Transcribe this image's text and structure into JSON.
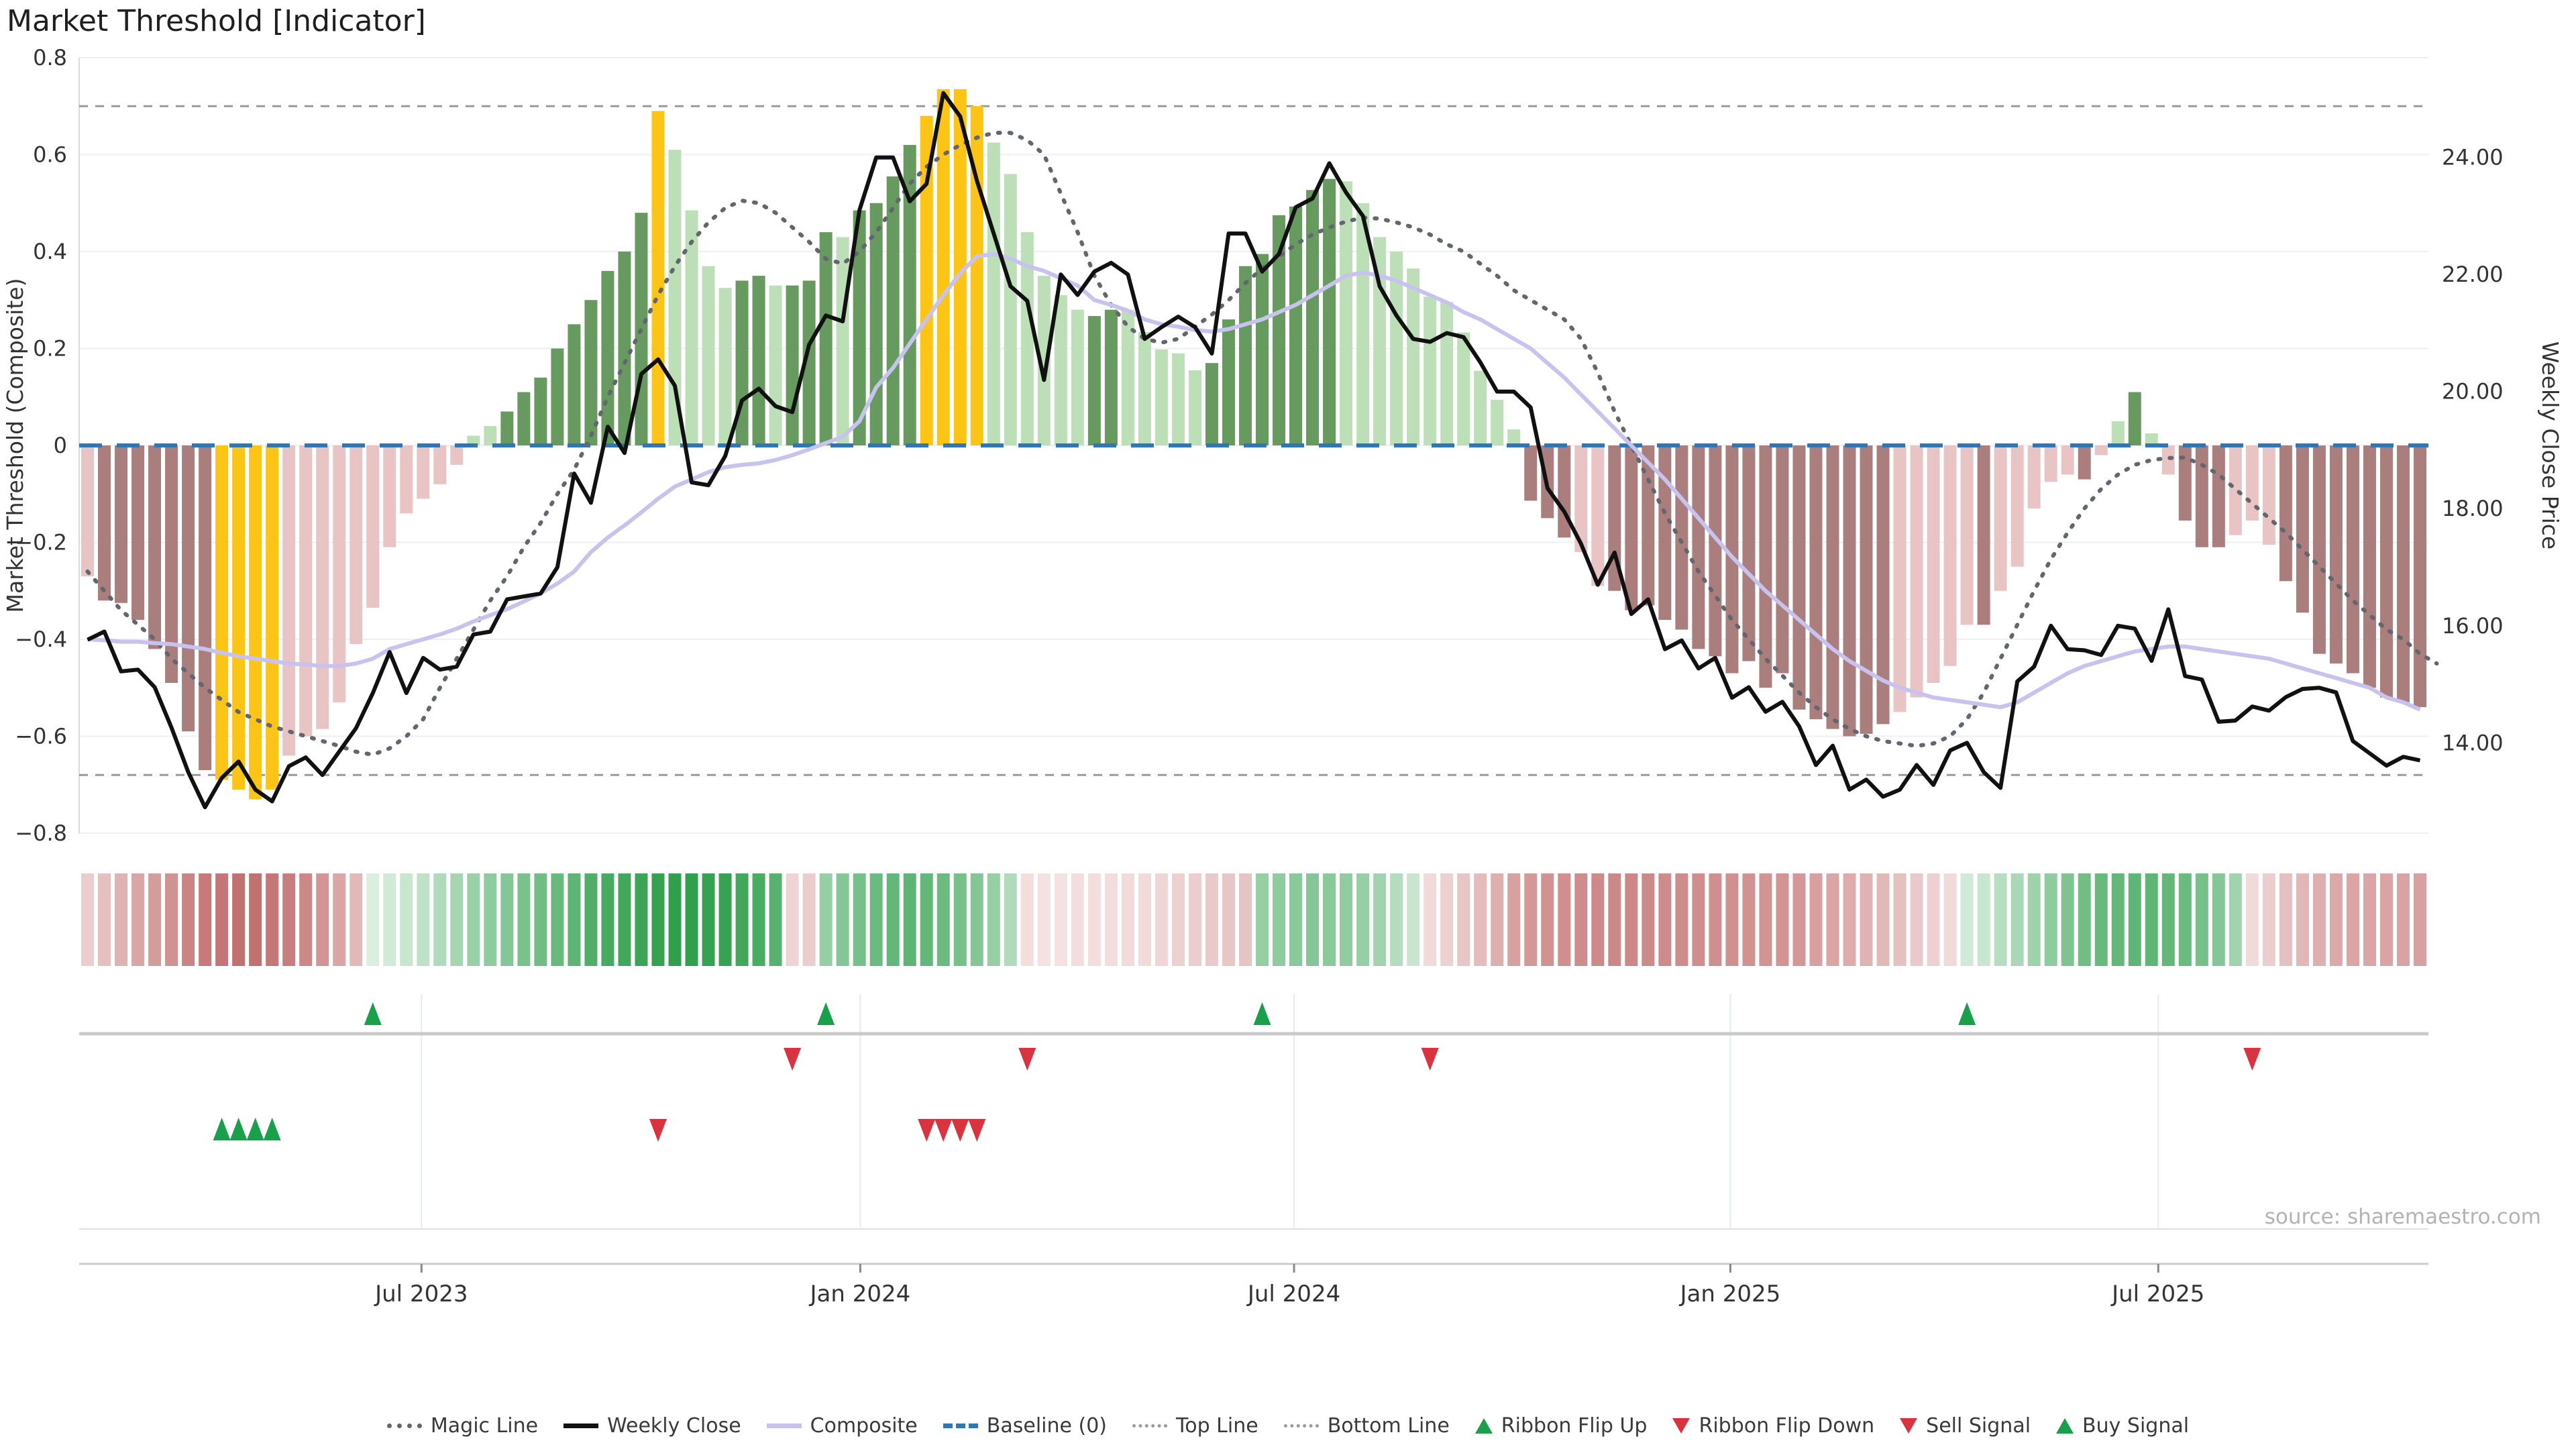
{
  "title": "Market Threshold [Indicator]",
  "source": "source: sharemaestro.com",
  "legend": [
    {
      "label": "Magic Line",
      "marker": "dot-thick"
    },
    {
      "label": "Weekly Close",
      "marker": "solid-black"
    },
    {
      "label": "Composite",
      "marker": "solid-purple"
    },
    {
      "label": "Baseline (0)",
      "marker": "dash-blue"
    },
    {
      "label": "Top Line",
      "marker": "dot-thin"
    },
    {
      "label": "Bottom Line",
      "marker": "dot-thin"
    },
    {
      "label": "Ribbon Flip Up",
      "marker": "tri-up"
    },
    {
      "label": "Ribbon Flip Down",
      "marker": "tri-down"
    },
    {
      "label": "Sell Signal",
      "marker": "tri-down"
    },
    {
      "label": "Buy Signal",
      "marker": "tri-up"
    }
  ],
  "colors": {
    "bar_neg_light": "#e9c4c4",
    "bar_neg_dark": "#ab7e7e",
    "bar_pos_light": "#bcdfb8",
    "bar_pos_dark": "#669a5e",
    "bar_signal_orange": "#fcc414",
    "weekly_close": "#111111",
    "composite": "#c8c2ee",
    "magic": "#63666e",
    "baseline": "#2f76b5",
    "ref_line": "#9a9a9a",
    "grid": "#eceff4",
    "signal_green": "#18a04a",
    "signal_red": "#d9333f",
    "ribbon_red_light": "#faeeee",
    "ribbon_red_dark": "#bf6a6a",
    "ribbon_green_light": "#eef7f0",
    "ribbon_green_dark": "#2d9e4a",
    "separator": "#c9c9c9",
    "axis_text": "#333333"
  },
  "chart_data": {
    "type": "bar",
    "subtype": "weekly market-threshold oscillator with overlaid price lines, momentum ribbon and trade signals",
    "weeks": 140,
    "left_axis": {
      "label": "Market Threshold (Composite)",
      "min": -0.8,
      "max": 0.8,
      "ticks": [
        0.8,
        0.6,
        0.4,
        0.2,
        0,
        -0.2,
        -0.4,
        -0.6,
        -0.8
      ],
      "tick_labels": [
        "0.8",
        "0.6",
        "0.4",
        "0.2",
        "0",
        "−0.2",
        "−0.4",
        "−0.6",
        "−0.8"
      ]
    },
    "right_axis": {
      "label": "Weekly Close Price",
      "ticks": [
        24,
        22,
        20,
        18,
        16,
        14
      ],
      "tick_labels": [
        "24.00",
        "22.00",
        "20.00",
        "18.00",
        "16.00",
        "14.00"
      ],
      "price_at_baseline": 19.08,
      "price_per_unit": 8.28
    },
    "x_ticks": [
      {
        "week": 19.9,
        "label": "Jul 2023"
      },
      {
        "week": 46.05,
        "label": "Jan 2024"
      },
      {
        "week": 71.9,
        "label": "Jul 2024"
      },
      {
        "week": 97.9,
        "label": "Jan 2025"
      },
      {
        "week": 123.4,
        "label": "Jul 2025"
      }
    ],
    "reference_lines": {
      "baseline": 0,
      "top_line": 0.7,
      "bottom_line": -0.68
    },
    "bar_values": [
      -0.27,
      -0.32,
      -0.325,
      -0.36,
      -0.42,
      -0.49,
      -0.59,
      -0.67,
      -0.69,
      -0.71,
      -0.73,
      -0.71,
      -0.64,
      -0.6,
      -0.585,
      -0.53,
      -0.41,
      -0.335,
      -0.21,
      -0.14,
      -0.11,
      -0.08,
      -0.04,
      0.02,
      0.04,
      0.07,
      0.11,
      0.14,
      0.2,
      0.25,
      0.3,
      0.36,
      0.4,
      0.48,
      0.69,
      0.61,
      0.485,
      0.37,
      0.325,
      0.34,
      0.35,
      0.33,
      0.33,
      0.34,
      0.44,
      0.43,
      0.485,
      0.5,
      0.555,
      0.62,
      0.68,
      0.735,
      0.735,
      0.7,
      0.625,
      0.56,
      0.44,
      0.35,
      0.31,
      0.28,
      0.267,
      0.28,
      0.28,
      0.234,
      0.198,
      0.19,
      0.155,
      0.17,
      0.26,
      0.37,
      0.395,
      0.475,
      0.493,
      0.527,
      0.55,
      0.545,
      0.5,
      0.43,
      0.4,
      0.365,
      0.307,
      0.296,
      0.233,
      0.154,
      0.094,
      0.033,
      -0.114,
      -0.15,
      -0.19,
      -0.22,
      -0.29,
      -0.3,
      -0.34,
      -0.33,
      -0.36,
      -0.38,
      -0.42,
      -0.435,
      -0.47,
      -0.445,
      -0.5,
      -0.47,
      -0.545,
      -0.565,
      -0.585,
      -0.6,
      -0.595,
      -0.575,
      -0.55,
      -0.52,
      -0.49,
      -0.455,
      -0.37,
      -0.37,
      -0.3,
      -0.25,
      -0.13,
      -0.075,
      -0.06,
      -0.07,
      -0.02,
      0.05,
      0.11,
      0.025,
      -0.06,
      -0.155,
      -0.21,
      -0.21,
      -0.185,
      -0.155,
      -0.205,
      -0.28,
      -0.345,
      -0.43,
      -0.45,
      -0.47,
      -0.5,
      -0.52,
      -0.53,
      -0.54
    ],
    "bar_shades": "ldddddddoooollllllllllllldddddddddollllddldddldddd oooollllllddlllllddddddddllllllllllldddllddddddddddddddddd lllll d lllll d ll d ll ddd lll ddddddddd",
    "weekly_close_price": [
      15.76,
      15.9,
      15.22,
      15.25,
      14.95,
      14.26,
      13.5,
      12.9,
      13.4,
      13.68,
      13.2,
      13.0,
      13.6,
      13.75,
      13.45,
      13.85,
      14.25,
      14.85,
      15.55,
      14.85,
      15.45,
      15.25,
      15.3,
      15.85,
      15.9,
      16.45,
      16.5,
      16.55,
      17.0,
      18.6,
      18.1,
      19.4,
      18.95,
      20.3,
      20.55,
      20.1,
      18.45,
      18.4,
      18.9,
      19.85,
      20.05,
      19.75,
      19.65,
      20.8,
      21.3,
      21.2,
      23.1,
      24.0,
      24.0,
      23.25,
      23.55,
      25.1,
      24.7,
      23.6,
      22.7,
      21.8,
      21.55,
      20.2,
      22.0,
      21.65,
      22.05,
      22.2,
      22.0,
      20.9,
      21.1,
      21.28,
      21.1,
      20.65,
      22.7,
      22.7,
      22.05,
      22.35,
      23.15,
      23.3,
      23.9,
      23.4,
      23.0,
      21.8,
      21.3,
      20.9,
      20.85,
      21.0,
      20.93,
      20.5,
      20.0,
      20.0,
      19.73,
      18.35,
      17.95,
      17.4,
      16.7,
      17.25,
      16.2,
      16.45,
      15.6,
      15.75,
      15.27,
      15.45,
      14.77,
      14.95,
      14.53,
      14.7,
      14.28,
      13.62,
      13.95,
      13.2,
      13.37,
      13.08,
      13.2,
      13.62,
      13.28,
      13.87,
      14.0,
      13.5,
      13.23,
      15.05,
      15.3,
      16.0,
      15.6,
      15.58,
      15.5,
      16.0,
      15.95,
      15.4,
      16.28,
      15.14,
      15.08,
      14.36,
      14.38,
      14.62,
      14.55,
      14.78,
      14.92,
      14.94,
      14.86,
      14.03,
      13.82,
      13.61,
      13.76,
      13.7
    ],
    "composite": [
      -0.4,
      -0.402,
      -0.405,
      -0.405,
      -0.408,
      -0.41,
      -0.415,
      -0.42,
      -0.428,
      -0.435,
      -0.44,
      -0.445,
      -0.45,
      -0.452,
      -0.455,
      -0.455,
      -0.45,
      -0.44,
      -0.42,
      -0.41,
      -0.4,
      -0.39,
      -0.378,
      -0.363,
      -0.35,
      -0.338,
      -0.322,
      -0.305,
      -0.285,
      -0.26,
      -0.22,
      -0.19,
      -0.165,
      -0.138,
      -0.11,
      -0.085,
      -0.07,
      -0.055,
      -0.045,
      -0.04,
      -0.037,
      -0.03,
      -0.02,
      -0.008,
      0.005,
      0.018,
      0.05,
      0.12,
      0.16,
      0.21,
      0.26,
      0.31,
      0.355,
      0.39,
      0.395,
      0.385,
      0.37,
      0.36,
      0.345,
      0.33,
      0.3,
      0.29,
      0.278,
      0.26,
      0.25,
      0.245,
      0.238,
      0.235,
      0.24,
      0.25,
      0.26,
      0.275,
      0.29,
      0.31,
      0.33,
      0.35,
      0.357,
      0.35,
      0.34,
      0.325,
      0.31,
      0.295,
      0.275,
      0.26,
      0.24,
      0.22,
      0.2,
      0.17,
      0.14,
      0.105,
      0.07,
      0.035,
      0.0,
      -0.035,
      -0.07,
      -0.11,
      -0.15,
      -0.19,
      -0.23,
      -0.265,
      -0.3,
      -0.33,
      -0.36,
      -0.39,
      -0.42,
      -0.445,
      -0.465,
      -0.485,
      -0.5,
      -0.51,
      -0.52,
      -0.525,
      -0.53,
      -0.535,
      -0.54,
      -0.53,
      -0.51,
      -0.49,
      -0.47,
      -0.455,
      -0.445,
      -0.435,
      -0.425,
      -0.42,
      -0.415,
      -0.415,
      -0.42,
      -0.425,
      -0.43,
      -0.435,
      -0.44,
      -0.45,
      -0.46,
      -0.47,
      -0.48,
      -0.49,
      -0.5,
      -0.52,
      -0.53,
      -0.545
    ],
    "magic_line": [
      -0.26,
      -0.3,
      -0.34,
      -0.37,
      -0.4,
      -0.44,
      -0.47,
      -0.5,
      -0.525,
      -0.55,
      -0.565,
      -0.58,
      -0.59,
      -0.6,
      -0.61,
      -0.62,
      -0.632,
      -0.638,
      -0.625,
      -0.6,
      -0.565,
      -0.5,
      -0.44,
      -0.38,
      -0.32,
      -0.27,
      -0.21,
      -0.16,
      -0.1,
      -0.05,
      0.02,
      0.1,
      0.17,
      0.24,
      0.31,
      0.37,
      0.42,
      0.46,
      0.49,
      0.505,
      0.5,
      0.48,
      0.45,
      0.42,
      0.385,
      0.375,
      0.4,
      0.44,
      0.49,
      0.54,
      0.575,
      0.6,
      0.62,
      0.635,
      0.645,
      0.645,
      0.63,
      0.6,
      0.52,
      0.44,
      0.35,
      0.29,
      0.245,
      0.22,
      0.212,
      0.22,
      0.245,
      0.27,
      0.3,
      0.335,
      0.365,
      0.39,
      0.415,
      0.435,
      0.45,
      0.462,
      0.47,
      0.468,
      0.46,
      0.45,
      0.435,
      0.415,
      0.4,
      0.375,
      0.35,
      0.32,
      0.3,
      0.28,
      0.26,
      0.22,
      0.15,
      0.07,
      0.0,
      -0.07,
      -0.14,
      -0.2,
      -0.26,
      -0.31,
      -0.36,
      -0.4,
      -0.44,
      -0.475,
      -0.51,
      -0.54,
      -0.565,
      -0.585,
      -0.6,
      -0.61,
      -0.615,
      -0.62,
      -0.615,
      -0.6,
      -0.565,
      -0.51,
      -0.44,
      -0.37,
      -0.3,
      -0.235,
      -0.18,
      -0.13,
      -0.09,
      -0.06,
      -0.04,
      -0.03,
      -0.026,
      -0.025,
      -0.04,
      -0.06,
      -0.09,
      -0.12,
      -0.15,
      -0.18,
      -0.215,
      -0.25,
      -0.285,
      -0.32,
      -0.35,
      -0.38,
      -0.4,
      -0.43,
      -0.45
    ],
    "ribbon": [
      -0.25,
      -0.35,
      -0.45,
      -0.55,
      -0.62,
      -0.7,
      -0.8,
      -0.88,
      -0.92,
      -0.95,
      -0.95,
      -0.9,
      -0.85,
      -0.78,
      -0.68,
      -0.55,
      -0.4,
      0.1,
      0.15,
      0.2,
      0.25,
      0.32,
      0.38,
      0.44,
      0.5,
      0.55,
      0.6,
      0.65,
      0.7,
      0.75,
      0.82,
      0.87,
      0.9,
      0.93,
      0.96,
      0.98,
      0.98,
      0.96,
      0.95,
      0.9,
      0.85,
      0.78,
      -0.2,
      -0.25,
      0.45,
      0.55,
      0.62,
      0.68,
      0.72,
      0.75,
      0.72,
      0.68,
      0.62,
      0.55,
      0.45,
      0.32,
      -0.12,
      -0.1,
      -0.1,
      -0.12,
      -0.12,
      -0.14,
      -0.15,
      -0.15,
      -0.18,
      -0.22,
      -0.25,
      -0.28,
      -0.3,
      -0.32,
      0.45,
      0.5,
      0.52,
      0.55,
      0.52,
      0.48,
      0.45,
      0.4,
      0.3,
      0.2,
      -0.15,
      -0.22,
      -0.3,
      -0.38,
      -0.48,
      -0.58,
      -0.65,
      -0.7,
      -0.72,
      -0.74,
      -0.76,
      -0.78,
      -0.78,
      -0.76,
      -0.75,
      -0.74,
      -0.73,
      -0.72,
      -0.71,
      -0.7,
      -0.69,
      -0.68,
      -0.66,
      -0.6,
      -0.55,
      -0.5,
      -0.45,
      -0.4,
      -0.35,
      -0.28,
      -0.22,
      -0.15,
      0.15,
      0.2,
      0.28,
      0.35,
      0.42,
      0.5,
      0.58,
      0.65,
      0.7,
      0.72,
      0.74,
      0.74,
      0.72,
      0.68,
      0.62,
      0.55,
      0.4,
      -0.15,
      -0.25,
      -0.35,
      -0.42,
      -0.48,
      -0.52,
      -0.55,
      -0.55,
      -0.56,
      -0.57,
      -0.58
    ],
    "signals": {
      "ribbon_flip_up_weeks": [
        17,
        44,
        70,
        112
      ],
      "ribbon_flip_down_weeks": [
        42,
        56,
        80,
        129
      ],
      "buy_signal_weeks": [
        8,
        9,
        10,
        11
      ],
      "sell_signal_weeks": [
        34,
        50,
        51,
        52,
        53
      ]
    }
  }
}
